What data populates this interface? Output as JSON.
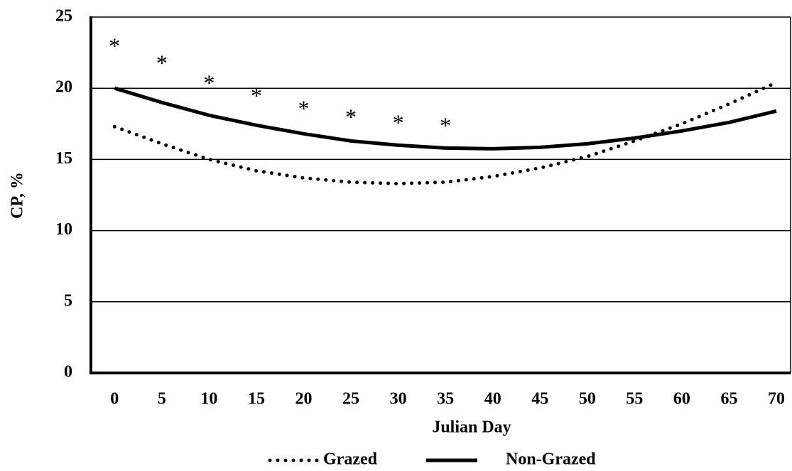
{
  "chart_data": {
    "type": "line",
    "x_label": "Julian Day",
    "y_label": "CP, %",
    "x": [
      0,
      5,
      10,
      15,
      20,
      25,
      30,
      35,
      40,
      45,
      50,
      55,
      60,
      65,
      70
    ],
    "series": [
      {
        "name": "Grazed",
        "color": "#000000",
        "style": "dotted",
        "values": [
          17.3,
          16.1,
          15.0,
          14.2,
          13.7,
          13.4,
          13.3,
          13.4,
          13.8,
          14.4,
          15.2,
          16.3,
          17.5,
          18.9,
          20.4
        ]
      },
      {
        "name": "Non-Grazed",
        "color": "#000000",
        "style": "solid",
        "values": [
          20.0,
          19.0,
          18.1,
          17.4,
          16.8,
          16.3,
          16.0,
          15.8,
          15.75,
          15.85,
          16.1,
          16.5,
          17.0,
          17.6,
          18.4
        ]
      }
    ],
    "annotations": [
      {
        "text": "*",
        "x": 0,
        "y": 23.2
      },
      {
        "text": "*",
        "x": 5,
        "y": 22.0
      },
      {
        "text": "*",
        "x": 10,
        "y": 20.6
      },
      {
        "text": "*",
        "x": 15,
        "y": 19.7
      },
      {
        "text": "*",
        "x": 20,
        "y": 18.8
      },
      {
        "text": "*",
        "x": 25,
        "y": 18.2
      },
      {
        "text": "*",
        "x": 30,
        "y": 17.8
      },
      {
        "text": "*",
        "x": 35,
        "y": 17.6
      }
    ],
    "xlim": [
      -2.5,
      71.5
    ],
    "xticks": [
      0,
      5,
      10,
      15,
      20,
      25,
      30,
      35,
      40,
      45,
      50,
      55,
      60,
      65,
      70
    ],
    "ylim": [
      0,
      25
    ],
    "yticks": [
      0,
      5,
      10,
      15,
      20,
      25
    ],
    "grid": true,
    "legend": "bottom"
  }
}
